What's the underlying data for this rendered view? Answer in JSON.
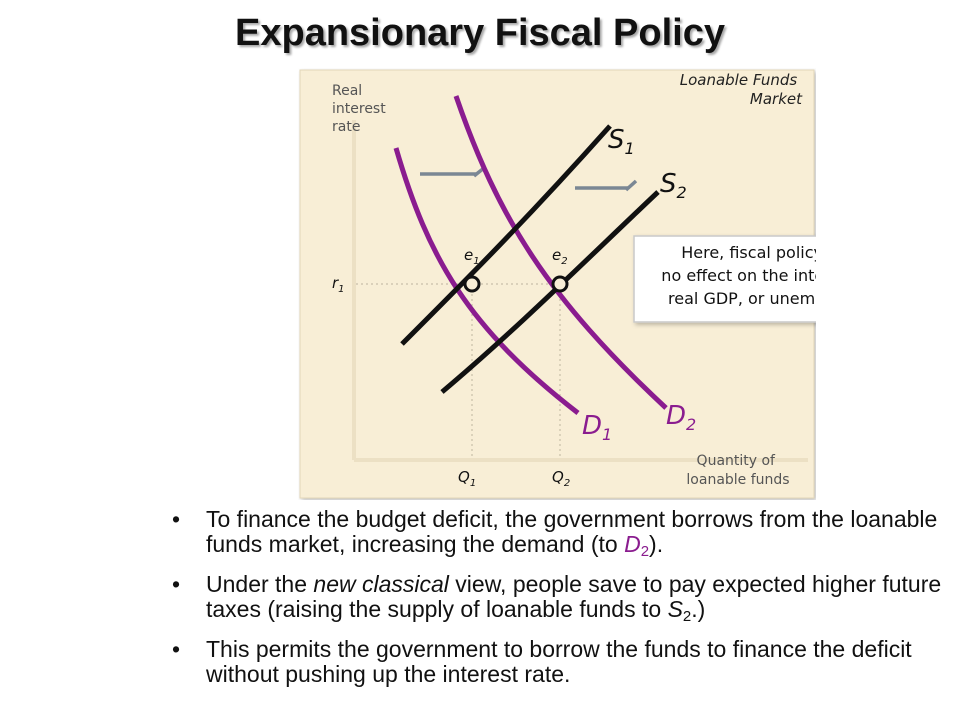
{
  "title": "Expansionary Fiscal Policy",
  "diagram": {
    "market_label_line1": "Loanable Funds",
    "market_label_line2": "Market",
    "y_axis_line1": "Real",
    "y_axis_line2": "interest",
    "y_axis_line3": "rate",
    "x_axis_line1": "Quantity of",
    "x_axis_line2": "loanable funds",
    "r_label": "r",
    "r_sub": "1",
    "q1_label": "Q",
    "q1_sub": "1",
    "q2_label": "Q",
    "q2_sub": "2",
    "s1_label": "S",
    "s1_sub": "1",
    "s2_label": "S",
    "s2_sub": "2",
    "d1_label": "D",
    "d1_sub": "1",
    "d2_label": "D",
    "d2_sub": "2",
    "e1_label": "e",
    "e1_sub": "1",
    "e2_label": "e",
    "e2_sub": "2",
    "callout_line1": "Here, fiscal policy exerts",
    "callout_line2": "no effect on the interest rate,",
    "callout_line3": "real GDP, or unemployment.",
    "colors": {
      "panel": "#f8eed6",
      "supply": "#111111",
      "demand": "#8a1c8f",
      "arrow": "#7b8794",
      "callout_border": "#c9c9c9"
    }
  },
  "bullets": {
    "b1_part1": "To finance the budget deficit, the government borrows from the loanable funds market, increasing the demand (to ",
    "b1_d": "D",
    "b1_sub": "2",
    "b1_end": ").",
    "b2_part1": "Under the ",
    "b2_italic": "new classical",
    "b2_part2": " view, people save to pay expected higher future taxes (raising the supply of loanable funds to ",
    "b2_s": "S",
    "b2_sub": "2",
    "b2_end": ".)",
    "b3": "This permits the government to borrow the funds to finance the deficit without pushing up the interest rate.",
    "bullet_glyph": "•"
  }
}
